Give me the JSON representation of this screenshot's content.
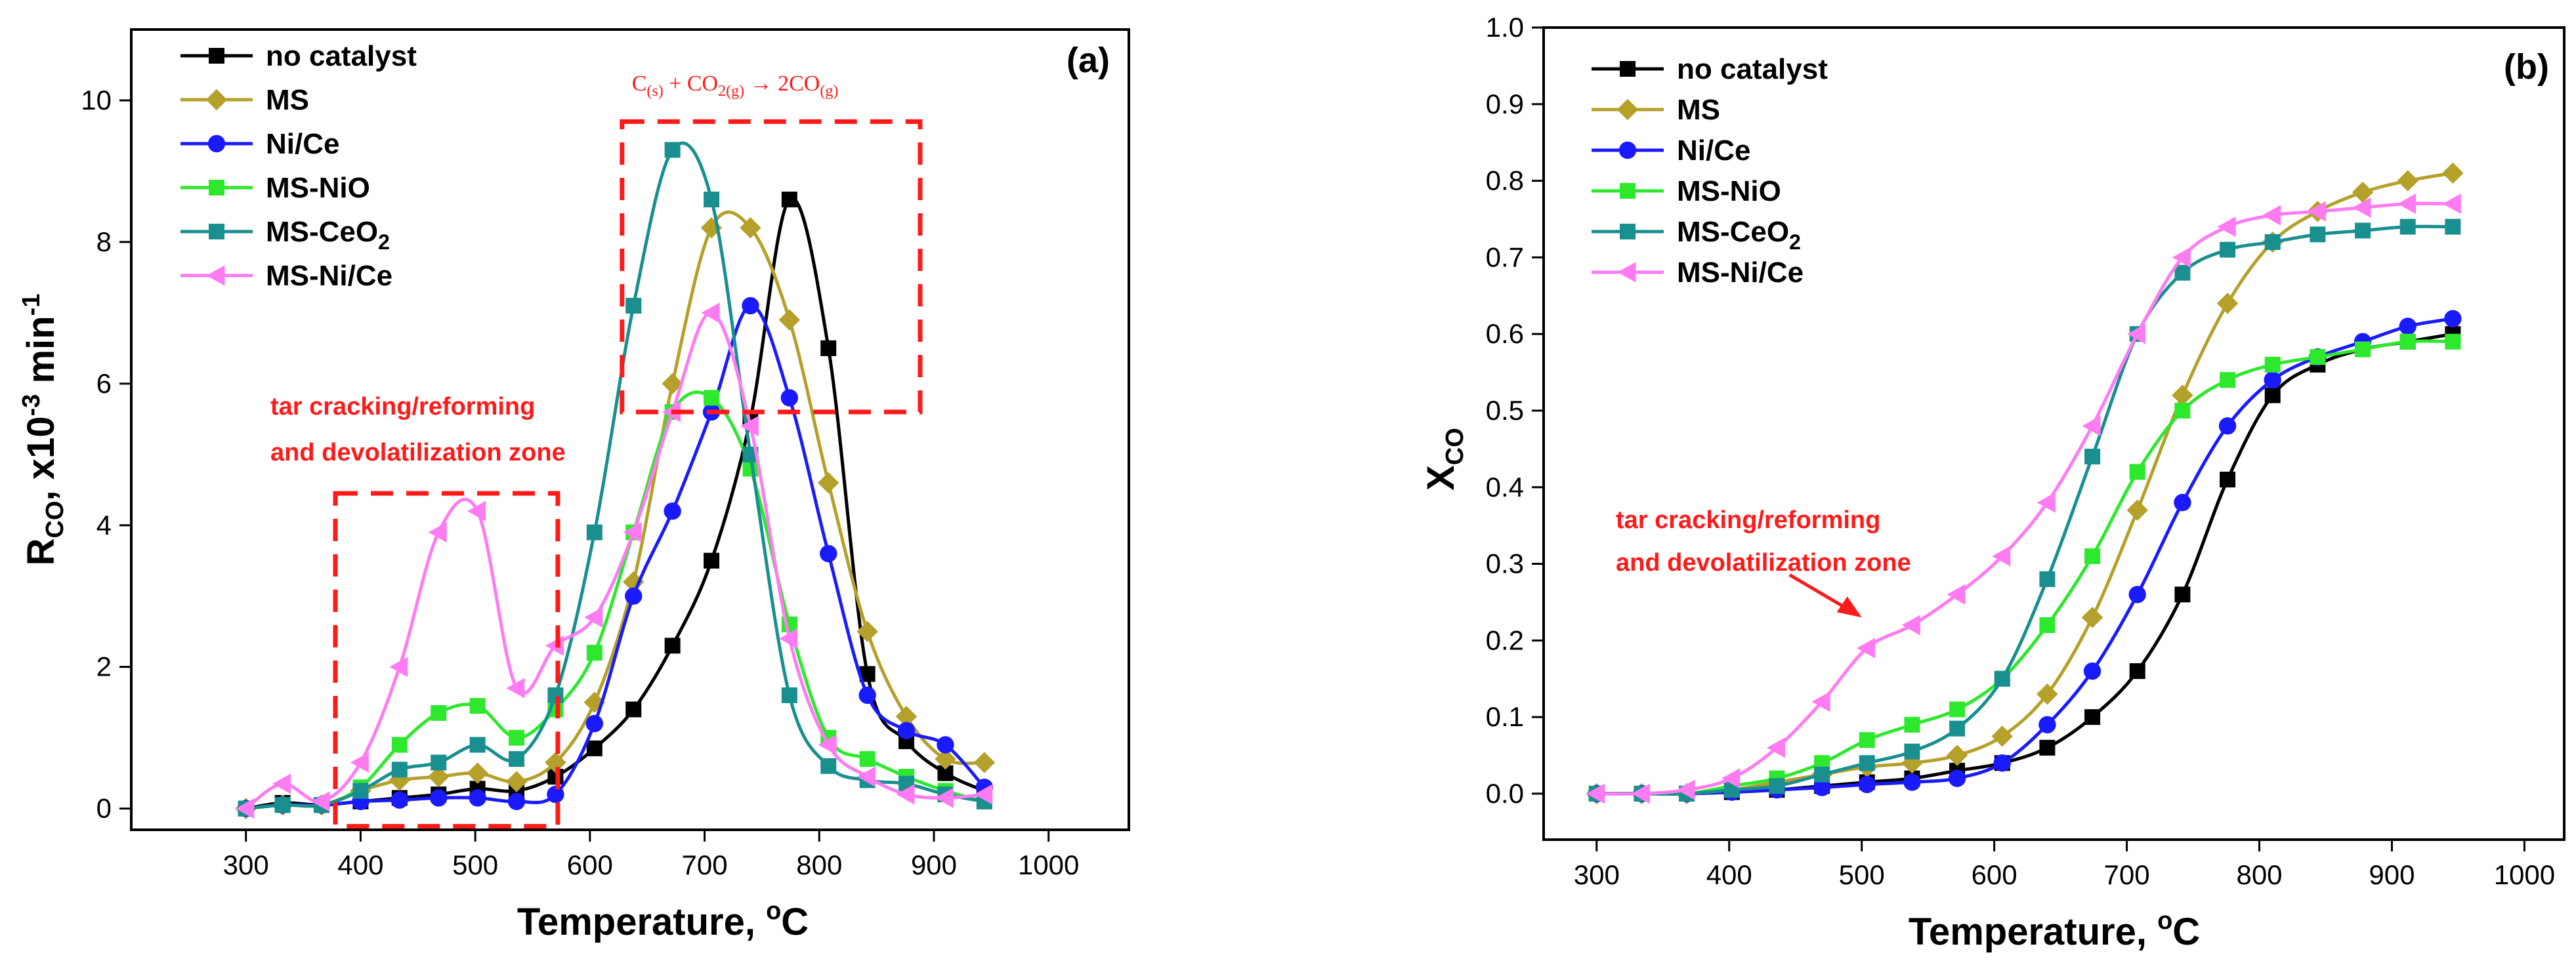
{
  "chart_data": [
    {
      "panel": "(a)",
      "type": "line",
      "xlabel": "Temperature, °C",
      "xlabel_main": "Temperature, ",
      "xlabel_sup": "o",
      "xlabel_end": "C",
      "ylabel": "RCO, x10-3 min-1",
      "ylabel_parts": {
        "main": "R",
        "sub": "CO",
        "mid": ", x10",
        "sup": "-3",
        "unit": " min",
        "sup2": "-1"
      },
      "xlim": [
        200,
        1070
      ],
      "ylim": [
        -0.3,
        11
      ],
      "xticks": [
        300,
        400,
        500,
        600,
        700,
        800,
        900,
        1000
      ],
      "yticks": [
        0,
        2,
        4,
        6,
        8,
        10
      ],
      "legend": [
        "no catalyst",
        "MS",
        "Ni/Ce",
        "MS-NiO",
        "MS-CeO2",
        "MS-Ni/Ce"
      ],
      "legend_display": [
        {
          "main": "no catalyst",
          "sub": ""
        },
        {
          "main": "MS",
          "sub": ""
        },
        {
          "main": "Ni/Ce",
          "sub": ""
        },
        {
          "main": "MS-NiO",
          "sub": ""
        },
        {
          "main": "MS-CeO",
          "sub": "2"
        },
        {
          "main": "MS-Ni/Ce",
          "sub": ""
        }
      ],
      "annotations": {
        "zone_label_line1": "tar cracking/reforming",
        "zone_label_line2": "and devolatilization zone",
        "reaction": {
          "parts": [
            {
              "t": "C",
              "sub": "(s)"
            },
            {
              "t": " + CO",
              "sub": ""
            },
            {
              "t": "2",
              "sub": "2"
            },
            {
              "t": "",
              "sub": "(g)"
            },
            {
              "t": " → 2CO",
              "sub": ""
            },
            {
              "t": "",
              "sub": "(g)"
            }
          ],
          "text": "C(s) + CO2(g) → 2CO(g)"
        },
        "zone_box_1": {
          "x": [
            378,
            572
          ],
          "y": [
            -0.25,
            4.45
          ]
        },
        "zone_box_2": {
          "x": [
            628,
            888
          ],
          "y": [
            5.6,
            9.7
          ]
        }
      },
      "x": [
        300,
        332,
        366,
        400,
        434,
        468,
        502,
        536,
        570,
        604,
        638,
        672,
        706,
        740,
        774,
        808,
        842,
        876,
        910,
        944
      ],
      "series": [
        {
          "name": "no catalyst",
          "color": "#000000",
          "marker": "square",
          "values": [
            0,
            0.08,
            0.05,
            0.1,
            0.15,
            0.2,
            0.28,
            0.25,
            0.45,
            0.85,
            1.4,
            2.3,
            3.5,
            5.5,
            8.6,
            6.5,
            1.9,
            0.95,
            0.5,
            0.25
          ]
        },
        {
          "name": "MS",
          "color": "#b5a02a",
          "marker": "diamond",
          "values": [
            0,
            0.05,
            0.05,
            0.25,
            0.4,
            0.45,
            0.5,
            0.38,
            0.65,
            1.5,
            3.2,
            6.0,
            8.2,
            8.2,
            6.9,
            4.6,
            2.5,
            1.3,
            0.7,
            0.65
          ]
        },
        {
          "name": "Ni/Ce",
          "color": "#1a1aff",
          "marker": "circle",
          "values": [
            0,
            0.05,
            0.05,
            0.1,
            0.12,
            0.15,
            0.15,
            0.1,
            0.2,
            1.2,
            3.0,
            4.2,
            5.6,
            7.1,
            5.8,
            3.6,
            1.6,
            1.1,
            0.9,
            0.3
          ]
        },
        {
          "name": "MS-NiO",
          "color": "#2ee82e",
          "marker": "square",
          "values": [
            0,
            0.05,
            0.05,
            0.3,
            0.9,
            1.35,
            1.45,
            1.0,
            1.4,
            2.2,
            3.9,
            5.6,
            5.8,
            4.8,
            2.6,
            1.0,
            0.7,
            0.45,
            0.25,
            0.1
          ]
        },
        {
          "name": "MS-CeO2",
          "color": "#1a8f8f",
          "marker": "square",
          "values": [
            0,
            0.05,
            0.05,
            0.25,
            0.55,
            0.65,
            0.9,
            0.7,
            1.6,
            3.9,
            7.1,
            9.3,
            8.6,
            5.0,
            1.6,
            0.6,
            0.4,
            0.35,
            0.2,
            0.1
          ]
        },
        {
          "name": "MS-Ni/Ce",
          "color": "#ff7bf2",
          "marker": "triangle-left",
          "values": [
            0,
            0.35,
            0.1,
            0.65,
            2.0,
            3.9,
            4.2,
            1.7,
            2.3,
            2.7,
            3.9,
            5.6,
            7.0,
            5.4,
            2.4,
            0.9,
            0.45,
            0.2,
            0.15,
            0.2
          ]
        }
      ]
    },
    {
      "panel": "(b)",
      "type": "line",
      "xlabel": "Temperature, °C",
      "xlabel_main": "Temperature, ",
      "xlabel_sup": "o",
      "xlabel_end": "C",
      "ylabel": "XCO",
      "ylabel_parts": {
        "main": "X",
        "sub": "CO"
      },
      "xlim": [
        260,
        1030
      ],
      "ylim": [
        -0.06,
        1.0
      ],
      "xticks": [
        300,
        400,
        500,
        600,
        700,
        800,
        900,
        1000
      ],
      "yticks": [
        0.0,
        0.1,
        0.2,
        0.3,
        0.4,
        0.5,
        0.6,
        0.7,
        0.8,
        0.9,
        1.0
      ],
      "ytick_labels": [
        "0.0",
        "0.1",
        "0.2",
        "0.3",
        "0.4",
        "0.5",
        "0.6",
        "0.7",
        "0.8",
        "0.9",
        "1.0"
      ],
      "legend": [
        "no catalyst",
        "MS",
        "Ni/Ce",
        "MS-NiO",
        "MS-CeO2",
        "MS-Ni/Ce"
      ],
      "legend_display": [
        {
          "main": "no catalyst",
          "sub": ""
        },
        {
          "main": "MS",
          "sub": ""
        },
        {
          "main": "Ni/Ce",
          "sub": ""
        },
        {
          "main": "MS-NiO",
          "sub": ""
        },
        {
          "main": "MS-CeO",
          "sub": "2"
        },
        {
          "main": "MS-Ni/Ce",
          "sub": ""
        }
      ],
      "annotations": {
        "zone_label_line1": "tar cracking/reforming",
        "zone_label_line2": "and devolatilization zone",
        "arrow_to": {
          "x": 500,
          "y": 0.23
        }
      },
      "x": [
        300,
        334,
        368,
        402,
        436,
        470,
        504,
        538,
        572,
        606,
        640,
        674,
        708,
        742,
        776,
        810,
        844,
        878,
        912,
        946
      ],
      "series": [
        {
          "name": "no catalyst",
          "color": "#000000",
          "marker": "square",
          "values": [
            0,
            0,
            0,
            0.002,
            0.005,
            0.01,
            0.015,
            0.02,
            0.03,
            0.04,
            0.06,
            0.1,
            0.16,
            0.26,
            0.41,
            0.52,
            0.56,
            0.58,
            0.59,
            0.6
          ]
        },
        {
          "name": "MS",
          "color": "#b5a02a",
          "marker": "diamond",
          "values": [
            0,
            0,
            0,
            0.005,
            0.015,
            0.025,
            0.035,
            0.04,
            0.05,
            0.075,
            0.13,
            0.23,
            0.37,
            0.52,
            0.64,
            0.72,
            0.76,
            0.785,
            0.8,
            0.81
          ]
        },
        {
          "name": "Ni/Ce",
          "color": "#1a1aff",
          "marker": "circle",
          "values": [
            0,
            0,
            0,
            0.002,
            0.005,
            0.008,
            0.012,
            0.015,
            0.02,
            0.04,
            0.09,
            0.16,
            0.26,
            0.38,
            0.48,
            0.54,
            0.57,
            0.59,
            0.61,
            0.62
          ]
        },
        {
          "name": "MS-NiO",
          "color": "#2ee82e",
          "marker": "square",
          "values": [
            0,
            0,
            0,
            0.01,
            0.02,
            0.04,
            0.07,
            0.09,
            0.11,
            0.15,
            0.22,
            0.31,
            0.42,
            0.5,
            0.54,
            0.56,
            0.57,
            0.58,
            0.59,
            0.59
          ]
        },
        {
          "name": "MS-CeO2",
          "color": "#1a8f8f",
          "marker": "square",
          "values": [
            0,
            0,
            0,
            0.005,
            0.01,
            0.025,
            0.04,
            0.055,
            0.085,
            0.15,
            0.28,
            0.44,
            0.6,
            0.68,
            0.71,
            0.72,
            0.73,
            0.735,
            0.74,
            0.74
          ]
        },
        {
          "name": "MS-Ni/Ce",
          "color": "#ff7bf2",
          "marker": "triangle-left",
          "values": [
            0,
            0,
            0.005,
            0.02,
            0.06,
            0.12,
            0.19,
            0.22,
            0.26,
            0.31,
            0.38,
            0.48,
            0.6,
            0.7,
            0.74,
            0.755,
            0.76,
            0.765,
            0.77,
            0.77
          ]
        }
      ]
    }
  ]
}
